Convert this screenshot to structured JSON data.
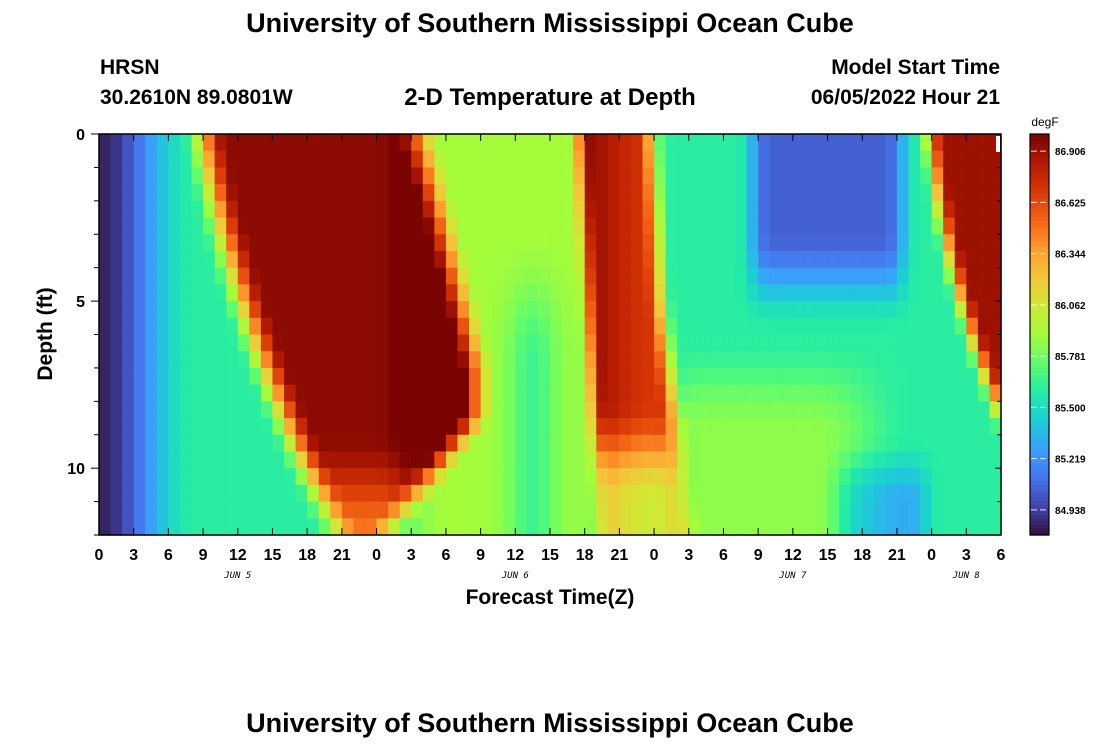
{
  "header": {
    "title": "University of Southern Mississippi Ocean Cube",
    "station": "HRSN",
    "coords": "30.2610N  89.0801W",
    "subtitle": "2-D Temperature at Depth",
    "start_label": "Model Start Time",
    "start_value": "06/05/2022 Hour 21"
  },
  "footer": {
    "title": "University of Southern Mississippi Ocean Cube"
  },
  "chart_data": {
    "type": "heatmap",
    "title": "2-D Temperature at Depth",
    "xlabel": "Forecast Time(Z)",
    "ylabel": "Depth (ft)",
    "x_ticks": [
      "0",
      "3",
      "6",
      "9",
      "12",
      "15",
      "18",
      "21",
      "0",
      "3",
      "6",
      "9",
      "12",
      "15",
      "18",
      "21",
      "0",
      "3",
      "6",
      "9",
      "12",
      "15",
      "18",
      "21",
      "0",
      "3",
      "6"
    ],
    "x_hour_range": [
      0,
      78
    ],
    "date_labels": [
      {
        "label": "JUN 5",
        "hour": 12
      },
      {
        "label": "JUN 6",
        "hour": 36
      },
      {
        "label": "JUN 7",
        "hour": 60
      },
      {
        "label": "JUN 8",
        "hour": 75
      }
    ],
    "y_ticks": [
      0,
      5,
      10
    ],
    "y_range": [
      0,
      12
    ],
    "y_inverted": true,
    "colorbar": {
      "unit": "degF",
      "min": 84.8,
      "max": 87.0,
      "ticks": [
        "86.906",
        "86.625",
        "86.344",
        "86.062",
        "85.781",
        "85.500",
        "85.219",
        "84.938"
      ],
      "colormap": [
        "#30123b",
        "#4145ab",
        "#4675ed",
        "#39a2fc",
        "#1bcfd4",
        "#24eca6",
        "#61fc6c",
        "#a4fc3b",
        "#d1e834",
        "#f3c63a",
        "#fe9b2d",
        "#f36315",
        "#d93806",
        "#b11901",
        "#7a0402"
      ]
    },
    "temperature_model": {
      "note": "temperature field in degF sampled per hour (0-78) and per 0.5 ft depth (0-12)"
    }
  }
}
